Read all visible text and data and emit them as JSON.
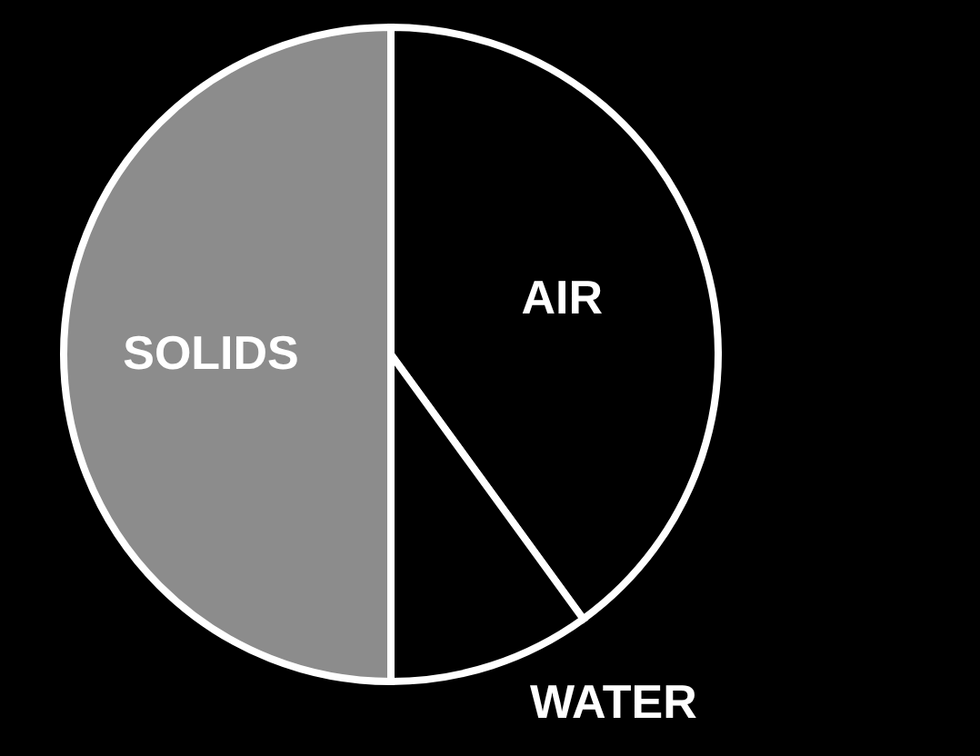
{
  "chart_data": {
    "type": "pie",
    "categories": [
      "AIR",
      "WATER",
      "SOLIDS"
    ],
    "values": [
      40,
      10,
      50
    ],
    "colors": [
      "#000000",
      "#000000",
      "#8c8c8c"
    ]
  }
}
